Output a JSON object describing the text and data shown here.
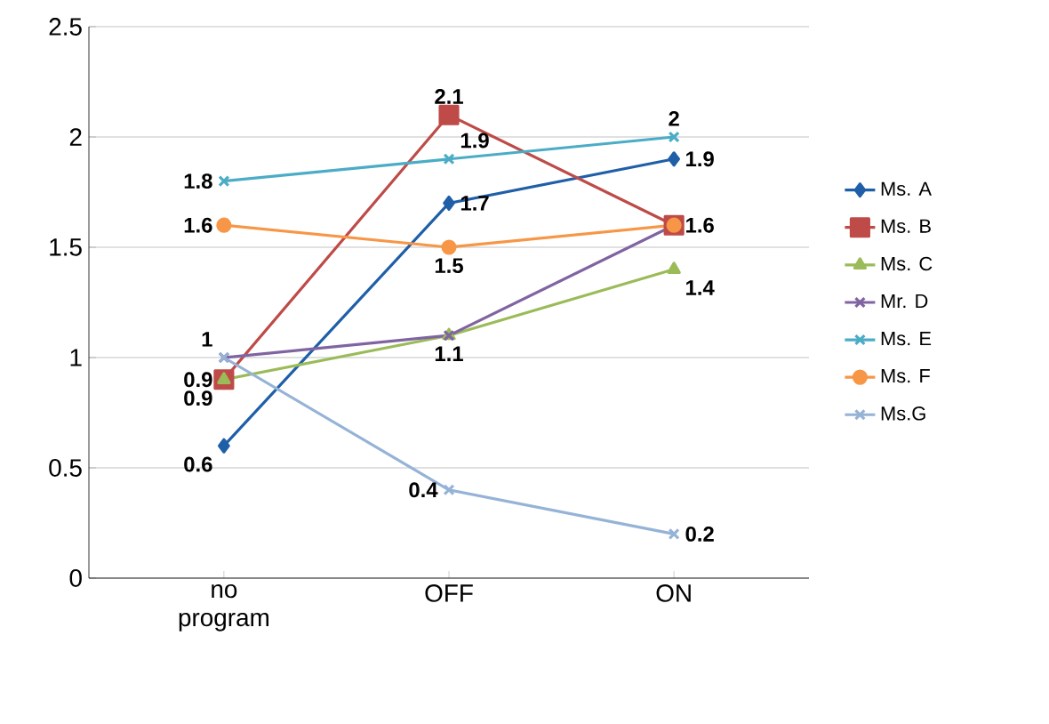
{
  "chart_data": {
    "type": "line",
    "categories": [
      "no program",
      "OFF",
      "ON"
    ],
    "ylim": [
      0,
      2.5
    ],
    "yticks": [
      0,
      0.5,
      1,
      1.5,
      2,
      2.5
    ],
    "grid": "y",
    "legend": "right",
    "line_style": "solid",
    "series": [
      {
        "name": "Ms. A",
        "color": "#1f5fa8",
        "marker": "diamond",
        "values": [
          0.6,
          1.7,
          1.9
        ],
        "value_labels": [
          "0.6",
          "1.7",
          "1.9"
        ]
      },
      {
        "name": "Ms. B",
        "color": "#be4b48",
        "marker": "square",
        "values": [
          0.9,
          2.1,
          1.6
        ],
        "value_labels": [
          "0.9",
          "2.1",
          null
        ]
      },
      {
        "name": "Ms. C",
        "color": "#9bbb59",
        "marker": "triangle",
        "values": [
          0.9,
          1.1,
          1.4
        ],
        "value_labels": [
          "0.9",
          "1.1",
          "1.4"
        ]
      },
      {
        "name": "Mr. D",
        "color": "#8064a2",
        "marker": "cross",
        "values": [
          1,
          1.1,
          1.6
        ],
        "value_labels": [
          "1",
          null,
          null
        ]
      },
      {
        "name": "Ms. E",
        "color": "#4bacc6",
        "marker": "cross",
        "values": [
          1.8,
          1.9,
          2
        ],
        "value_labels": [
          "1.8",
          "1.9",
          "2"
        ]
      },
      {
        "name": "Ms. F",
        "color": "#f79646",
        "marker": "circle",
        "values": [
          1.6,
          1.5,
          1.6
        ],
        "value_labels": [
          "1.6",
          "1.5",
          "1.6"
        ]
      },
      {
        "name": "Ms.G",
        "color": "#95b3d7",
        "marker": "cross",
        "values": [
          1,
          0.4,
          0.2
        ],
        "value_labels": [
          null,
          "0.4",
          "0.2"
        ]
      }
    ]
  }
}
